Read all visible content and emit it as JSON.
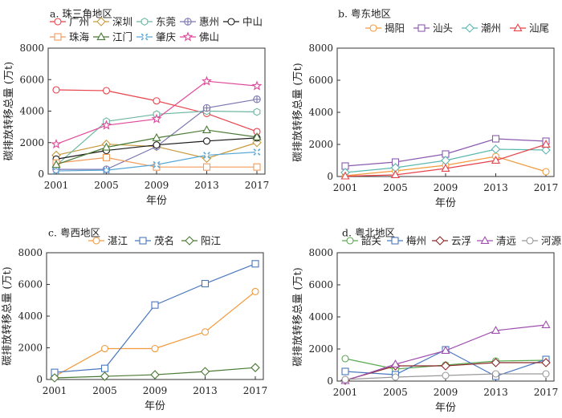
{
  "chart_data": [
    {
      "type": "line",
      "title": "a. 珠三角地区",
      "x": [
        2001,
        2005,
        2009,
        2013,
        2017
      ],
      "xlabel": "年份",
      "ylabel": "碳排放转移总量 (万t)",
      "ylim": [
        0,
        8000
      ],
      "yticks": [
        0,
        2000,
        4000,
        6000,
        8000
      ],
      "legend": "top-left",
      "series": [
        {
          "name": "广州",
          "color": "#e8424a",
          "marker": "circle",
          "values": [
            5350,
            5300,
            4650,
            3850,
            2700
          ]
        },
        {
          "name": "深圳",
          "color": "#c89a3c",
          "marker": "diamond",
          "values": [
            1200,
            1900,
            1750,
            1000,
            2000
          ]
        },
        {
          "name": "东莞",
          "color": "#6fb8a3",
          "marker": "hexagon",
          "values": [
            550,
            3350,
            3800,
            4000,
            3950
          ]
        },
        {
          "name": "惠州",
          "color": "#7b78b0",
          "marker": "cross",
          "values": [
            300,
            300,
            1750,
            4200,
            4750
          ]
        },
        {
          "name": "中山",
          "color": "#1a1a1a",
          "marker": "circle",
          "values": [
            950,
            1500,
            1850,
            2100,
            2300
          ]
        },
        {
          "name": "珠海",
          "color": "#f39a5a",
          "marker": "square",
          "values": [
            700,
            1050,
            450,
            450,
            450
          ]
        },
        {
          "name": "江门",
          "color": "#4a7a35",
          "marker": "triangle",
          "values": [
            600,
            1700,
            2300,
            2800,
            2350
          ]
        },
        {
          "name": "肇庆",
          "color": "#57a8d8",
          "marker": "xbox",
          "values": [
            200,
            250,
            600,
            1200,
            1400
          ]
        },
        {
          "name": "佛山",
          "color": "#e0489a",
          "marker": "star",
          "values": [
            1900,
            3100,
            3500,
            5900,
            5600
          ]
        }
      ]
    },
    {
      "type": "line",
      "title": "b. 粤东地区",
      "x": [
        2001,
        2005,
        2009,
        2013,
        2017
      ],
      "xlabel": "年份",
      "ylabel": "碳排放转移总量 (万t)",
      "ylim": [
        0,
        8000
      ],
      "yticks": [
        0,
        2000,
        4000,
        6000,
        8000
      ],
      "legend": "top",
      "series": [
        {
          "name": "揭阳",
          "color": "#f39a3c",
          "marker": "circle",
          "values": [
            50,
            350,
            700,
            1250,
            300
          ]
        },
        {
          "name": "汕头",
          "color": "#8a5ab0",
          "marker": "square",
          "values": [
            650,
            900,
            1400,
            2350,
            2200
          ]
        },
        {
          "name": "潮州",
          "color": "#5bb8b0",
          "marker": "diamond",
          "values": [
            250,
            550,
            1000,
            1700,
            1650
          ]
        },
        {
          "name": "汕尾",
          "color": "#e8424a",
          "marker": "triangle",
          "values": [
            20,
            100,
            500,
            1000,
            2000
          ]
        }
      ]
    },
    {
      "type": "line",
      "title": "c. 粤西地区",
      "x": [
        2001,
        2005,
        2009,
        2013,
        2017
      ],
      "xlabel": "年份",
      "ylabel": "碳排放转移总量 (万t)",
      "ylim": [
        0,
        8000
      ],
      "yticks": [
        0,
        2000,
        4000,
        6000,
        8000
      ],
      "legend": "top",
      "series": [
        {
          "name": "湛江",
          "color": "#f39a3c",
          "marker": "circle",
          "values": [
            200,
            1950,
            1950,
            3000,
            5550
          ]
        },
        {
          "name": "茂名",
          "color": "#4a78c0",
          "marker": "square",
          "values": [
            450,
            700,
            4700,
            6050,
            7300
          ]
        },
        {
          "name": "阳江",
          "color": "#4a7a35",
          "marker": "diamond",
          "values": [
            100,
            200,
            300,
            500,
            750
          ]
        }
      ]
    },
    {
      "type": "line",
      "title": "d. 粤北地区",
      "x": [
        2001,
        2005,
        2009,
        2013,
        2017
      ],
      "xlabel": "年份",
      "ylabel": "碳排放转移总量 (万t)",
      "ylim": [
        0,
        8000
      ],
      "yticks": [
        0,
        2000,
        4000,
        6000,
        8000
      ],
      "legend": "top",
      "series": [
        {
          "name": "韶关",
          "color": "#5aaa50",
          "marker": "circle",
          "values": [
            1400,
            750,
            1000,
            1250,
            1300
          ]
        },
        {
          "name": "梅州",
          "color": "#4a78c0",
          "marker": "square",
          "values": [
            600,
            400,
            1950,
            300,
            1350
          ]
        },
        {
          "name": "云浮",
          "color": "#8a2a2a",
          "marker": "diamond",
          "values": [
            50,
            950,
            950,
            1150,
            1150
          ]
        },
        {
          "name": "清远",
          "color": "#a050b0",
          "marker": "triangle",
          "values": [
            20,
            1050,
            1900,
            3150,
            3500
          ]
        },
        {
          "name": "河源",
          "color": "#999999",
          "marker": "circle",
          "values": [
            100,
            250,
            350,
            450,
            450
          ]
        }
      ]
    }
  ]
}
